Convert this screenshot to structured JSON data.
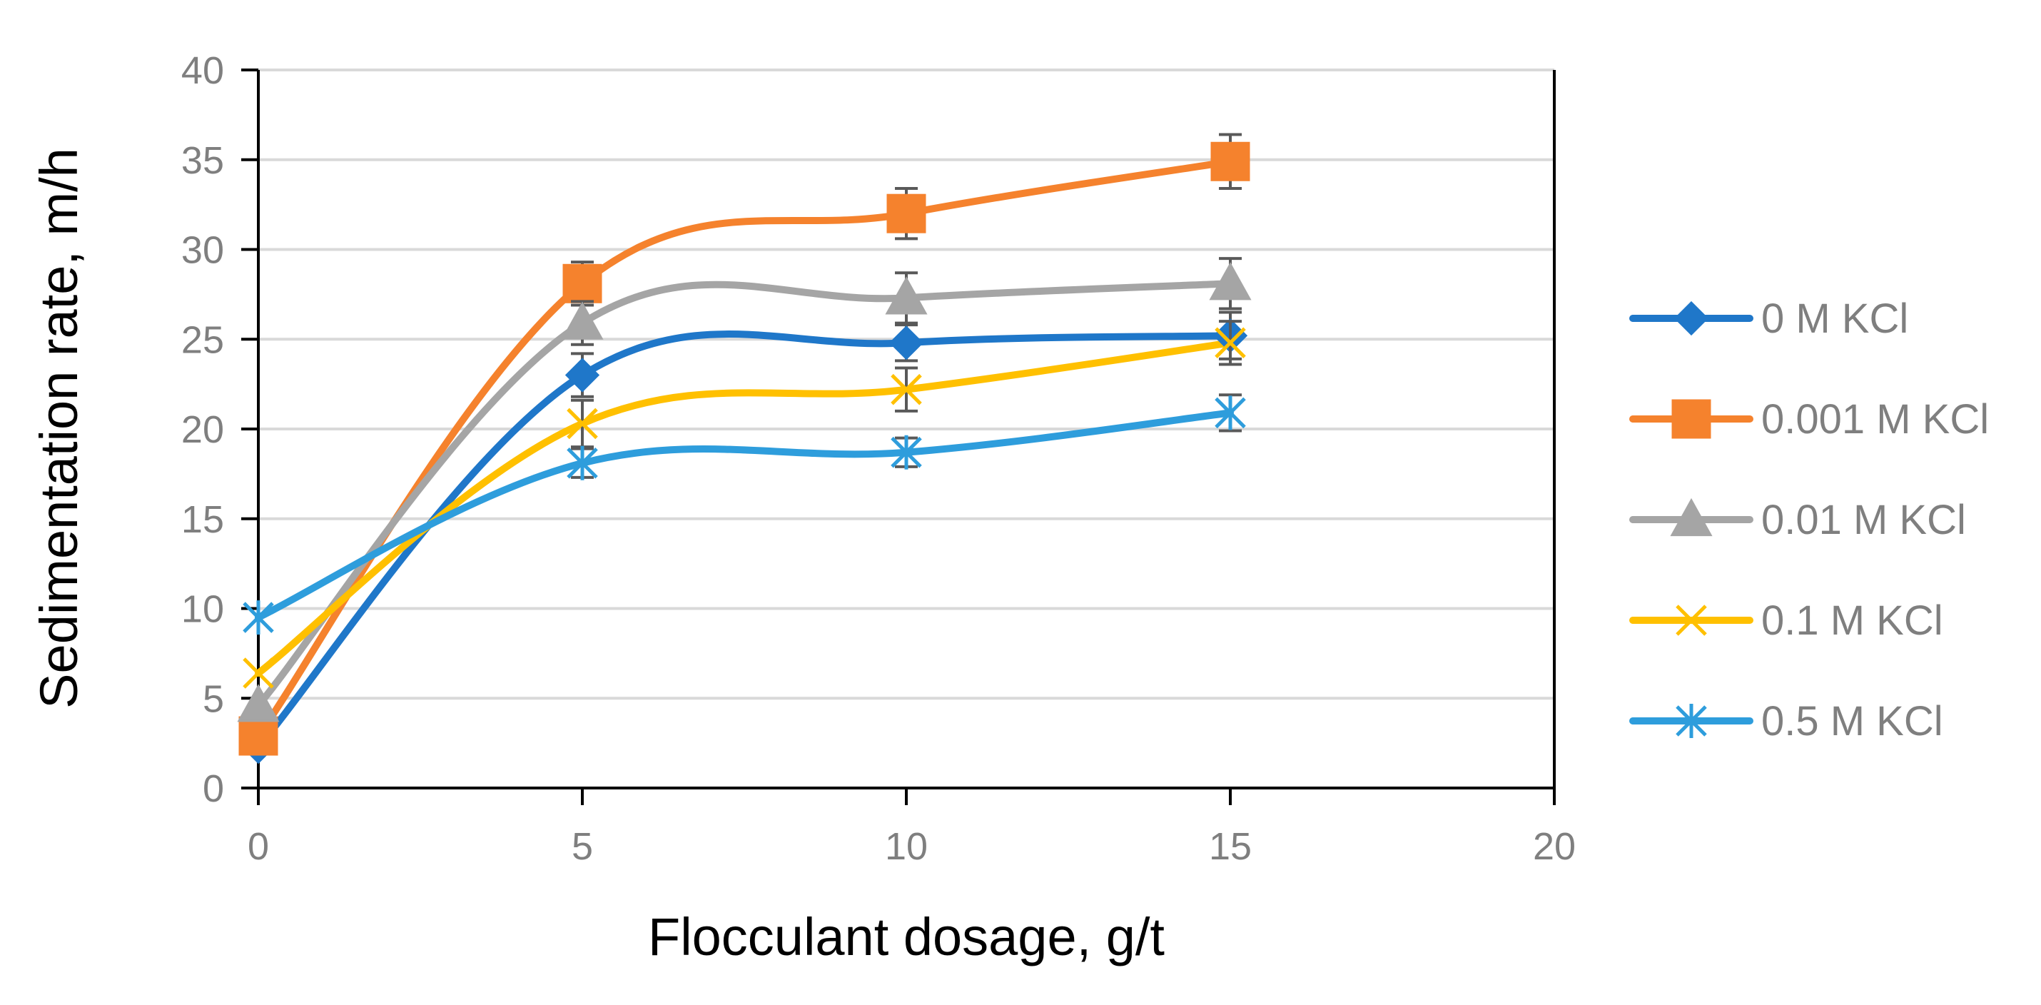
{
  "chart_data": {
    "type": "line",
    "title": "",
    "xlabel": "Flocculant dosage, g/t",
    "ylabel": "Sedimentation rate, m/h",
    "xlim": [
      0,
      20
    ],
    "ylim": [
      0,
      40
    ],
    "x_ticks": [
      "0",
      "5",
      "10",
      "15",
      "20"
    ],
    "y_ticks": [
      "0",
      "5",
      "10",
      "15",
      "20",
      "25",
      "30",
      "35",
      "40"
    ],
    "grid": "horizontal",
    "legend_position": "right",
    "smooth": true,
    "x": [
      0,
      5,
      10,
      15
    ],
    "series": [
      {
        "name": "0 M KCl",
        "values": [
          2.3,
          23.0,
          24.8,
          25.2
        ],
        "errors": [
          0,
          1.2,
          1.0,
          1.3
        ],
        "color": "#1f77c9",
        "marker": "diamond"
      },
      {
        "name": "0.001 M KCl",
        "values": [
          2.9,
          28.1,
          32.0,
          34.9
        ],
        "errors": [
          0,
          1.2,
          1.4,
          1.5
        ],
        "color": "#f5822d",
        "marker": "square"
      },
      {
        "name": "0.01 M KCl",
        "values": [
          4.6,
          25.9,
          27.3,
          28.1
        ],
        "errors": [
          0,
          1.2,
          1.4,
          1.4
        ],
        "color": "#a5a5a5",
        "marker": "triangle"
      },
      {
        "name": "0.1 M KCl",
        "values": [
          6.4,
          20.3,
          22.2,
          24.8
        ],
        "errors": [
          0,
          1.3,
          1.2,
          1.2
        ],
        "color": "#ffc000",
        "marker": "x"
      },
      {
        "name": "0.5 M KCl",
        "values": [
          9.5,
          18.1,
          18.7,
          20.9
        ],
        "errors": [
          0,
          0.8,
          0.8,
          1.0
        ],
        "color": "#2e9ddc",
        "marker": "asterisk"
      }
    ]
  }
}
